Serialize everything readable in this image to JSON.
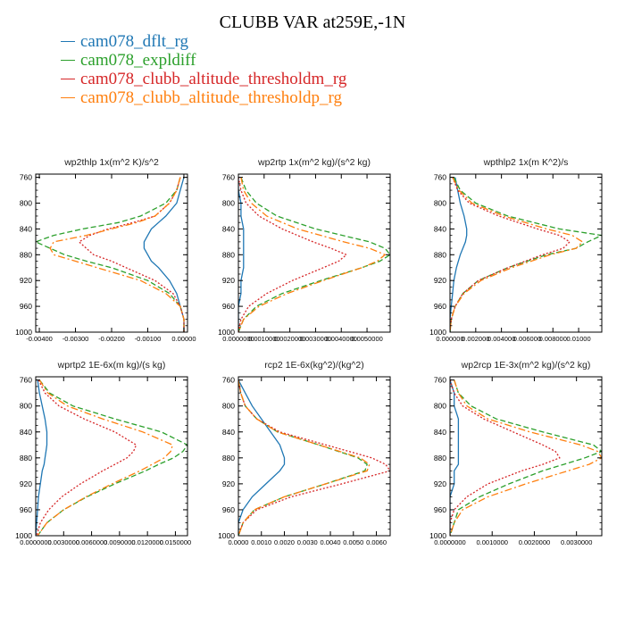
{
  "title": "CLUBB VAR at259E,-1N",
  "series_names": [
    "cam078_dflt_rg",
    "cam078_expldiff",
    "cam078_clubb_altitude_thresholdm_rg",
    "cam078_clubb_altitude_thresholdp_rg"
  ],
  "series_colors": [
    "#1f77b4",
    "#2ca02c",
    "#d62728",
    "#ff7f0e"
  ],
  "series_dash": [
    "",
    "6,3",
    "2,2",
    "8,3,2,3"
  ],
  "chart_data": [
    {
      "type": "line",
      "title": "wp2thlp  1x(m^2 K)/s^2",
      "ylim": [
        1000,
        755
      ],
      "yticks": [
        760,
        800,
        840,
        880,
        920,
        960,
        1000
      ],
      "xlim": [
        -0.0041,
        0.0001
      ],
      "xticks": [
        -0.004,
        -0.003,
        -0.002,
        -0.001,
        0.0
      ],
      "xtick_labels": [
        "-0.00400",
        "-0.00300",
        "-0.00200",
        "-0.00100",
        "0.00000"
      ],
      "y": [
        760,
        780,
        800,
        820,
        830,
        840,
        850,
        860,
        870,
        880,
        890,
        900,
        920,
        940,
        960,
        980,
        1000
      ],
      "series": [
        {
          "name": "cam078_dflt_rg",
          "values": [
            0.0,
            -0.0001,
            -0.0002,
            -0.0005,
            -0.0007,
            -0.0009,
            -0.001,
            -0.0011,
            -0.0011,
            -0.001,
            -0.0009,
            -0.0007,
            -0.0004,
            -0.0002,
            -0.0001,
            0.0,
            0.0
          ]
        },
        {
          "name": "cam078_expldiff",
          "values": [
            -0.0001,
            -0.0002,
            -0.0005,
            -0.0012,
            -0.0018,
            -0.0028,
            -0.0036,
            -0.0041,
            -0.0037,
            -0.0033,
            -0.0027,
            -0.002,
            -0.001,
            -0.0004,
            -0.0001,
            0.0,
            0.0
          ]
        },
        {
          "name": "cam078_clubb_altitude_thresholdm_rg",
          "values": [
            -0.0001,
            -0.0002,
            -0.0004,
            -0.0008,
            -0.0014,
            -0.0021,
            -0.0026,
            -0.0029,
            -0.0027,
            -0.0025,
            -0.002,
            -0.0016,
            -0.0008,
            -0.0003,
            -0.0001,
            0.0,
            0.0
          ]
        },
        {
          "name": "cam078_clubb_altitude_thresholdp_rg",
          "values": [
            -0.0001,
            -0.0002,
            -0.0004,
            -0.0008,
            -0.0013,
            -0.002,
            -0.0027,
            -0.0036,
            -0.0037,
            -0.0036,
            -0.003,
            -0.0024,
            -0.0012,
            -0.0005,
            -0.0001,
            0.0,
            0.0
          ]
        }
      ]
    },
    {
      "type": "line",
      "title": "wp2rtp  1x(m^2 kg)/(s^2 kg)",
      "ylim": [
        1000,
        755
      ],
      "yticks": [
        760,
        800,
        840,
        880,
        920,
        960,
        1000
      ],
      "xlim": [
        0.0,
        0.0059
      ],
      "xticks": [
        0.0,
        0.001,
        0.002,
        0.003,
        0.004,
        0.005
      ],
      "xtick_labels": [
        "0.0000000",
        "0.0010000",
        "0.0020000",
        "0.0030000",
        "0.0040000",
        "0.0050000"
      ],
      "y": [
        760,
        780,
        800,
        820,
        840,
        860,
        870,
        880,
        890,
        900,
        920,
        940,
        960,
        980,
        1000
      ],
      "series": [
        {
          "name": "cam078_dflt_rg",
          "values": [
            0.0,
            0.0,
            0.0001,
            0.0001,
            0.0002,
            0.0002,
            0.0002,
            0.0002,
            0.0002,
            0.0002,
            0.0001,
            0.0001,
            0.0,
            0.0,
            0.0
          ]
        },
        {
          "name": "cam078_expldiff",
          "values": [
            0.0001,
            0.0003,
            0.0007,
            0.0015,
            0.003,
            0.0051,
            0.0057,
            0.0059,
            0.0055,
            0.0048,
            0.0032,
            0.0017,
            0.0007,
            0.0002,
            0.0
          ]
        },
        {
          "name": "cam078_clubb_altitude_thresholdm_rg",
          "values": [
            0.0,
            0.0001,
            0.0003,
            0.0008,
            0.0017,
            0.0029,
            0.0036,
            0.0042,
            0.0039,
            0.0033,
            0.0021,
            0.0011,
            0.0004,
            0.0001,
            0.0
          ]
        },
        {
          "name": "cam078_clubb_altitude_thresholdp_rg",
          "values": [
            0.0001,
            0.0002,
            0.0005,
            0.0011,
            0.0023,
            0.0041,
            0.0051,
            0.0057,
            0.0054,
            0.0048,
            0.0033,
            0.0019,
            0.0008,
            0.0002,
            0.0
          ]
        }
      ]
    },
    {
      "type": "line",
      "title": "wpthlp2  1x(m K^2)/s",
      "ylim": [
        1000,
        755
      ],
      "yticks": [
        760,
        800,
        840,
        880,
        920,
        960,
        1000
      ],
      "xlim": [
        0.0,
        0.0118
      ],
      "xticks": [
        0.0,
        0.002,
        0.004,
        0.006,
        0.008,
        0.01
      ],
      "xtick_labels": [
        "0.000000",
        "0.002000",
        "0.004000",
        "0.006000",
        "0.008000",
        "0.01000"
      ],
      "y": [
        760,
        780,
        800,
        820,
        840,
        850,
        860,
        870,
        880,
        900,
        920,
        940,
        960,
        980,
        1000
      ],
      "series": [
        {
          "name": "cam078_dflt_rg",
          "values": [
            0.0004,
            0.0006,
            0.0008,
            0.0011,
            0.0013,
            0.0013,
            0.0012,
            0.001,
            0.0008,
            0.0005,
            0.0003,
            0.0002,
            0.0001,
            0.0,
            0.0
          ]
        },
        {
          "name": "cam078_expldiff",
          "values": [
            0.0003,
            0.0008,
            0.002,
            0.0045,
            0.0085,
            0.0118,
            0.0107,
            0.0098,
            0.0075,
            0.0045,
            0.0022,
            0.001,
            0.0004,
            0.0001,
            0.0
          ]
        },
        {
          "name": "cam078_clubb_altitude_thresholdm_rg",
          "values": [
            0.0002,
            0.0006,
            0.0015,
            0.0038,
            0.0068,
            0.0085,
            0.0093,
            0.0088,
            0.0072,
            0.0045,
            0.0022,
            0.001,
            0.0004,
            0.0001,
            0.0
          ]
        },
        {
          "name": "cam078_clubb_altitude_thresholdp_rg",
          "values": [
            0.0002,
            0.0007,
            0.0017,
            0.0042,
            0.0075,
            0.0095,
            0.0103,
            0.0098,
            0.0078,
            0.0048,
            0.0024,
            0.0011,
            0.0004,
            0.0001,
            0.0
          ]
        }
      ]
    },
    {
      "type": "line",
      "title": "wprtp2  1E-6x(m kg)/(s kg)",
      "ylim": [
        1000,
        755
      ],
      "yticks": [
        760,
        800,
        840,
        880,
        920,
        960,
        1000
      ],
      "xlim": [
        0.0,
        0.0163
      ],
      "xticks": [
        0.0,
        0.003,
        0.006,
        0.009,
        0.012,
        0.015
      ],
      "xtick_labels": [
        "0.0000000",
        "0.0030000",
        "0.0060000",
        "0.0090000",
        "0.0120000",
        "0.0150000"
      ],
      "y": [
        760,
        780,
        800,
        820,
        840,
        860,
        870,
        880,
        890,
        900,
        920,
        940,
        960,
        980,
        1000
      ],
      "series": [
        {
          "name": "cam078_dflt_rg",
          "values": [
            0.0002,
            0.0004,
            0.0007,
            0.001,
            0.0012,
            0.0012,
            0.0011,
            0.001,
            0.0009,
            0.0007,
            0.0005,
            0.0003,
            0.0002,
            0.0001,
            0.0
          ]
        },
        {
          "name": "cam078_expldiff",
          "values": [
            0.0004,
            0.0015,
            0.004,
            0.0085,
            0.0135,
            0.0163,
            0.0158,
            0.0148,
            0.0132,
            0.0118,
            0.0085,
            0.0055,
            0.003,
            0.0012,
            0.0002
          ]
        },
        {
          "name": "cam078_clubb_altitude_thresholdm_rg",
          "values": [
            0.0003,
            0.001,
            0.0025,
            0.0052,
            0.0085,
            0.0108,
            0.0105,
            0.0098,
            0.0085,
            0.0072,
            0.0048,
            0.0028,
            0.0014,
            0.0005,
            0.0001
          ]
        },
        {
          "name": "cam078_clubb_altitude_thresholdp_rg",
          "values": [
            0.0004,
            0.0013,
            0.0034,
            0.0072,
            0.0115,
            0.0147,
            0.0145,
            0.0138,
            0.0125,
            0.0112,
            0.0082,
            0.0054,
            0.003,
            0.0012,
            0.0002
          ]
        }
      ]
    },
    {
      "type": "line",
      "title": "rcp2  1E-6x(kg^2)/(kg^2)",
      "ylim": [
        1000,
        755
      ],
      "yticks": [
        760,
        800,
        840,
        880,
        920,
        960,
        1000
      ],
      "xlim": [
        0.0,
        0.0066
      ],
      "xticks": [
        0.0,
        0.001,
        0.002,
        0.003,
        0.004,
        0.005,
        0.006
      ],
      "xtick_labels": [
        "0.0000",
        "0.0010",
        "0.0020",
        "0.0030",
        "0.0040",
        "0.0050",
        "0.0060"
      ],
      "y": [
        760,
        780,
        800,
        820,
        840,
        860,
        880,
        890,
        900,
        920,
        940,
        960,
        980,
        1000
      ],
      "series": [
        {
          "name": "cam078_dflt_rg",
          "values": [
            0.0,
            0.0003,
            0.0006,
            0.001,
            0.0014,
            0.0018,
            0.002,
            0.002,
            0.0018,
            0.0012,
            0.0006,
            0.0002,
            0.0,
            0.0
          ]
        },
        {
          "name": "cam078_expldiff",
          "values": [
            0.0,
            0.0001,
            0.0003,
            0.0008,
            0.0017,
            0.0035,
            0.0052,
            0.0056,
            0.0055,
            0.0038,
            0.002,
            0.0007,
            0.0002,
            0.0
          ]
        },
        {
          "name": "cam078_clubb_altitude_thresholdm_rg",
          "values": [
            0.0,
            0.0001,
            0.0003,
            0.0008,
            0.0018,
            0.0038,
            0.0058,
            0.0064,
            0.0066,
            0.0045,
            0.0023,
            0.0008,
            0.0002,
            0.0
          ]
        },
        {
          "name": "cam078_clubb_altitude_thresholdp_rg",
          "values": [
            0.0,
            0.0001,
            0.0003,
            0.0008,
            0.0017,
            0.0035,
            0.0053,
            0.0057,
            0.0056,
            0.0038,
            0.002,
            0.0007,
            0.0002,
            0.0
          ]
        }
      ]
    },
    {
      "type": "line",
      "title": "wp2rcp  1E-3x(m^2 kg)/(s^2 kg)",
      "ylim": [
        1000,
        755
      ],
      "yticks": [
        760,
        800,
        840,
        880,
        920,
        960,
        1000
      ],
      "xlim": [
        0.0,
        0.0036
      ],
      "xticks": [
        0.0,
        0.001,
        0.002,
        0.003
      ],
      "xtick_labels": [
        "0.0000000",
        "0.0010000",
        "0.0020000",
        "0.0030000"
      ],
      "y": [
        760,
        780,
        800,
        820,
        840,
        860,
        870,
        880,
        890,
        900,
        920,
        940,
        960,
        980,
        1000
      ],
      "series": [
        {
          "name": "cam078_dflt_rg",
          "values": [
            0.0,
            0.0001,
            0.0001,
            0.0002,
            0.0002,
            0.0002,
            0.0002,
            0.0002,
            0.0002,
            0.0001,
            0.0001,
            0.0,
            0.0,
            0.0,
            0.0
          ]
        },
        {
          "name": "cam078_expldiff",
          "values": [
            0.0001,
            0.0002,
            0.0005,
            0.0011,
            0.0022,
            0.0034,
            0.0036,
            0.0032,
            0.0027,
            0.0022,
            0.0014,
            0.0007,
            0.0002,
            0.0001,
            0.0
          ]
        },
        {
          "name": "cam078_clubb_altitude_thresholdm_rg",
          "values": [
            0.0,
            0.0001,
            0.0003,
            0.0008,
            0.0015,
            0.0022,
            0.0025,
            0.0026,
            0.0022,
            0.0017,
            0.0009,
            0.0004,
            0.0001,
            0.0,
            0.0
          ]
        },
        {
          "name": "cam078_clubb_altitude_thresholdp_rg",
          "values": [
            0.0001,
            0.0002,
            0.0004,
            0.0009,
            0.0019,
            0.0031,
            0.0035,
            0.0036,
            0.0033,
            0.0028,
            0.0018,
            0.0009,
            0.0003,
            0.0001,
            0.0
          ]
        }
      ]
    }
  ]
}
